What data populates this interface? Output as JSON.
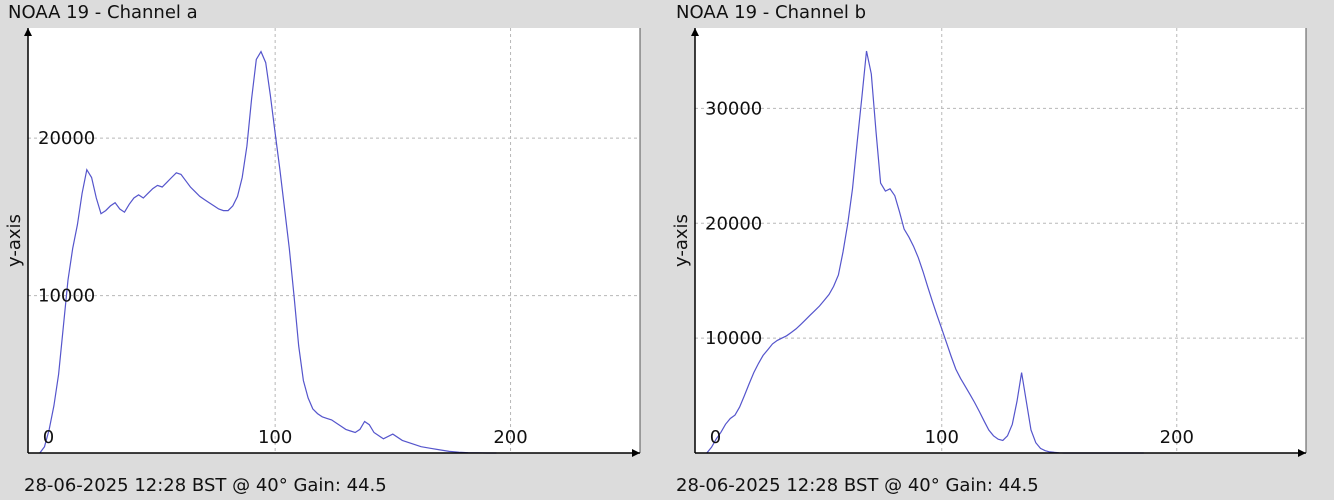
{
  "charts": [
    {
      "title": "NOAA 19 - Channel a",
      "footer": "28-06-2025 12:28 BST @ 40° Gain: 44.5"
    },
    {
      "title": "NOAA 19 - Channel b",
      "footer": "28-06-2025 12:28 BST @ 40° Gain: 44.5"
    }
  ],
  "colors": {
    "line": "#5555cc",
    "plot_bg": "#ffffff",
    "page_bg": "#dcdcdc",
    "grid": "#b8b8b8",
    "axis": "#000000"
  },
  "chart_data": [
    {
      "type": "line",
      "title": "NOAA 19 - Channel a",
      "xlabel": "",
      "ylabel": "y-axis",
      "xlim": [
        -5,
        255
      ],
      "ylim": [
        0,
        27000
      ],
      "xticks": [
        0,
        100,
        200
      ],
      "yticks": [
        10000,
        20000
      ],
      "grid": true,
      "series": [
        {
          "x": [
            0,
            2,
            4,
            6,
            8,
            10,
            12,
            14,
            16,
            18,
            20,
            22,
            24,
            26,
            28,
            30,
            32,
            34,
            36,
            38,
            40,
            42,
            44,
            46,
            48,
            50,
            52,
            54,
            56,
            58,
            60,
            62,
            64,
            66,
            68,
            70,
            72,
            74,
            76,
            78,
            80,
            82,
            84,
            86,
            88,
            90,
            92,
            94,
            96,
            98,
            100,
            102,
            104,
            106,
            108,
            110,
            112,
            114,
            116,
            118,
            120,
            122,
            124,
            126,
            128,
            130,
            132,
            134,
            136,
            138,
            140,
            142,
            146,
            150,
            154,
            158,
            162,
            166,
            170,
            174,
            178,
            182,
            186,
            190,
            194
          ],
          "y": [
            0,
            400,
            1500,
            3000,
            5000,
            8000,
            11000,
            13000,
            14500,
            16500,
            18000,
            17500,
            16200,
            15200,
            15400,
            15700,
            15900,
            15500,
            15300,
            15800,
            16200,
            16400,
            16200,
            16500,
            16800,
            17000,
            16900,
            17200,
            17500,
            17800,
            17700,
            17300,
            16900,
            16600,
            16300,
            16100,
            15900,
            15700,
            15500,
            15400,
            15400,
            15700,
            16300,
            17500,
            19500,
            22500,
            25000,
            25500,
            24800,
            22700,
            20300,
            18000,
            15500,
            13000,
            10000,
            6800,
            4600,
            3500,
            2800,
            2500,
            2300,
            2200,
            2100,
            1900,
            1700,
            1500,
            1400,
            1300,
            1500,
            2000,
            1800,
            1300,
            900,
            1200,
            800,
            600,
            400,
            300,
            200,
            100,
            50,
            20,
            10,
            0,
            0
          ]
        }
      ]
    },
    {
      "type": "line",
      "title": "NOAA 19 - Channel b",
      "xlabel": "",
      "ylabel": "y-axis",
      "xlim": [
        -5,
        255
      ],
      "ylim": [
        0,
        37000
      ],
      "xticks": [
        0,
        100,
        200
      ],
      "yticks": [
        10000,
        20000,
        30000
      ],
      "grid": true,
      "series": [
        {
          "x": [
            0,
            2,
            4,
            6,
            8,
            10,
            12,
            14,
            16,
            18,
            20,
            22,
            24,
            26,
            28,
            30,
            32,
            34,
            36,
            38,
            40,
            42,
            44,
            46,
            48,
            50,
            52,
            54,
            56,
            58,
            60,
            62,
            64,
            66,
            68,
            70,
            72,
            74,
            76,
            78,
            80,
            82,
            84,
            86,
            88,
            90,
            92,
            94,
            96,
            98,
            100,
            102,
            104,
            106,
            108,
            110,
            112,
            114,
            116,
            118,
            120,
            122,
            124,
            126,
            128,
            130,
            132,
            134,
            136,
            138,
            140,
            142,
            144,
            146,
            148,
            150,
            152,
            154,
            156,
            158,
            160,
            162,
            164,
            166,
            168,
            170,
            172,
            174,
            176,
            178,
            180,
            182,
            184,
            186
          ],
          "y": [
            0,
            500,
            1200,
            1800,
            2500,
            3000,
            3300,
            4000,
            5000,
            6000,
            7000,
            7800,
            8500,
            9000,
            9500,
            9800,
            10000,
            10200,
            10500,
            10800,
            11200,
            11600,
            12000,
            12400,
            12800,
            13300,
            13800,
            14500,
            15500,
            17500,
            20000,
            23000,
            27000,
            31000,
            35000,
            33000,
            28000,
            23500,
            22800,
            23000,
            22400,
            21000,
            19500,
            18800,
            18000,
            17000,
            15800,
            14500,
            13200,
            12000,
            10800,
            9600,
            8400,
            7300,
            6500,
            5800,
            5100,
            4400,
            3600,
            2800,
            2000,
            1500,
            1200,
            1100,
            1500,
            2500,
            4500,
            7000,
            4500,
            2000,
            900,
            400,
            200,
            100,
            50,
            20,
            0,
            0,
            0,
            0,
            0,
            0,
            0,
            0,
            0,
            0,
            0,
            0,
            0,
            0,
            0,
            0,
            0,
            0
          ]
        }
      ]
    }
  ]
}
